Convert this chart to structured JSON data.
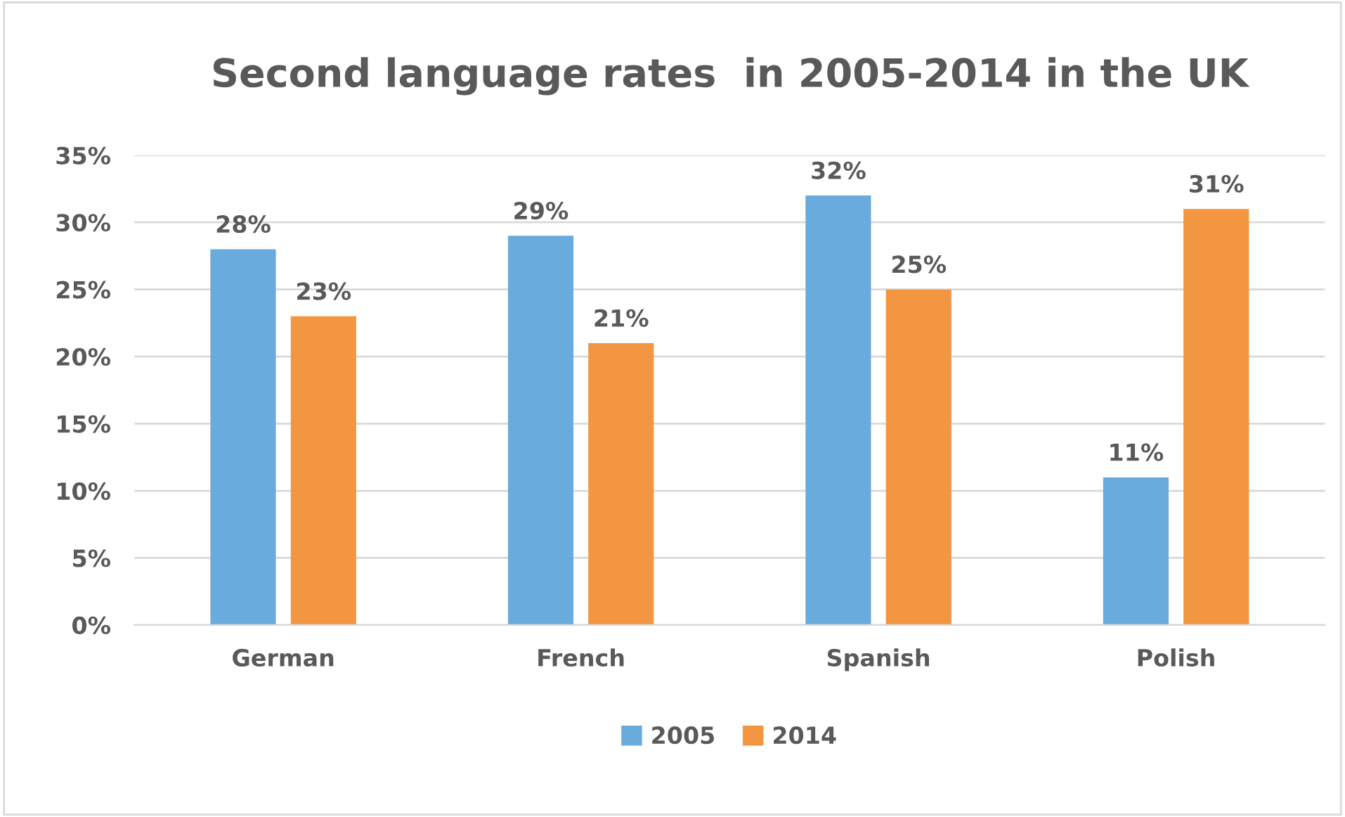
{
  "chart_data": {
    "type": "bar",
    "title": "Second language rates  in 2005-2014 in the UK",
    "categories": [
      "German",
      "French",
      "Spanish",
      "Polish"
    ],
    "series": [
      {
        "name": "2005",
        "color": "#6aabdd",
        "values": [
          28,
          29,
          32,
          11
        ],
        "value_labels": [
          "28%",
          "29%",
          "32%",
          "11%"
        ]
      },
      {
        "name": "2014",
        "color": "#f39642",
        "values": [
          23,
          21,
          25,
          31
        ],
        "value_labels": [
          "23%",
          "21%",
          "25%",
          "31%"
        ]
      }
    ],
    "ylim": [
      0,
      35
    ],
    "yticks": [
      {
        "value": 0,
        "label": "0%"
      },
      {
        "value": 5,
        "label": "5%"
      },
      {
        "value": 10,
        "label": "10%"
      },
      {
        "value": 15,
        "label": "15%"
      },
      {
        "value": 20,
        "label": "20%"
      },
      {
        "value": 25,
        "label": "25%"
      },
      {
        "value": 30,
        "label": "30%"
      },
      {
        "value": 35,
        "label": "35%"
      }
    ],
    "grid": "y",
    "legend": "bottom"
  }
}
